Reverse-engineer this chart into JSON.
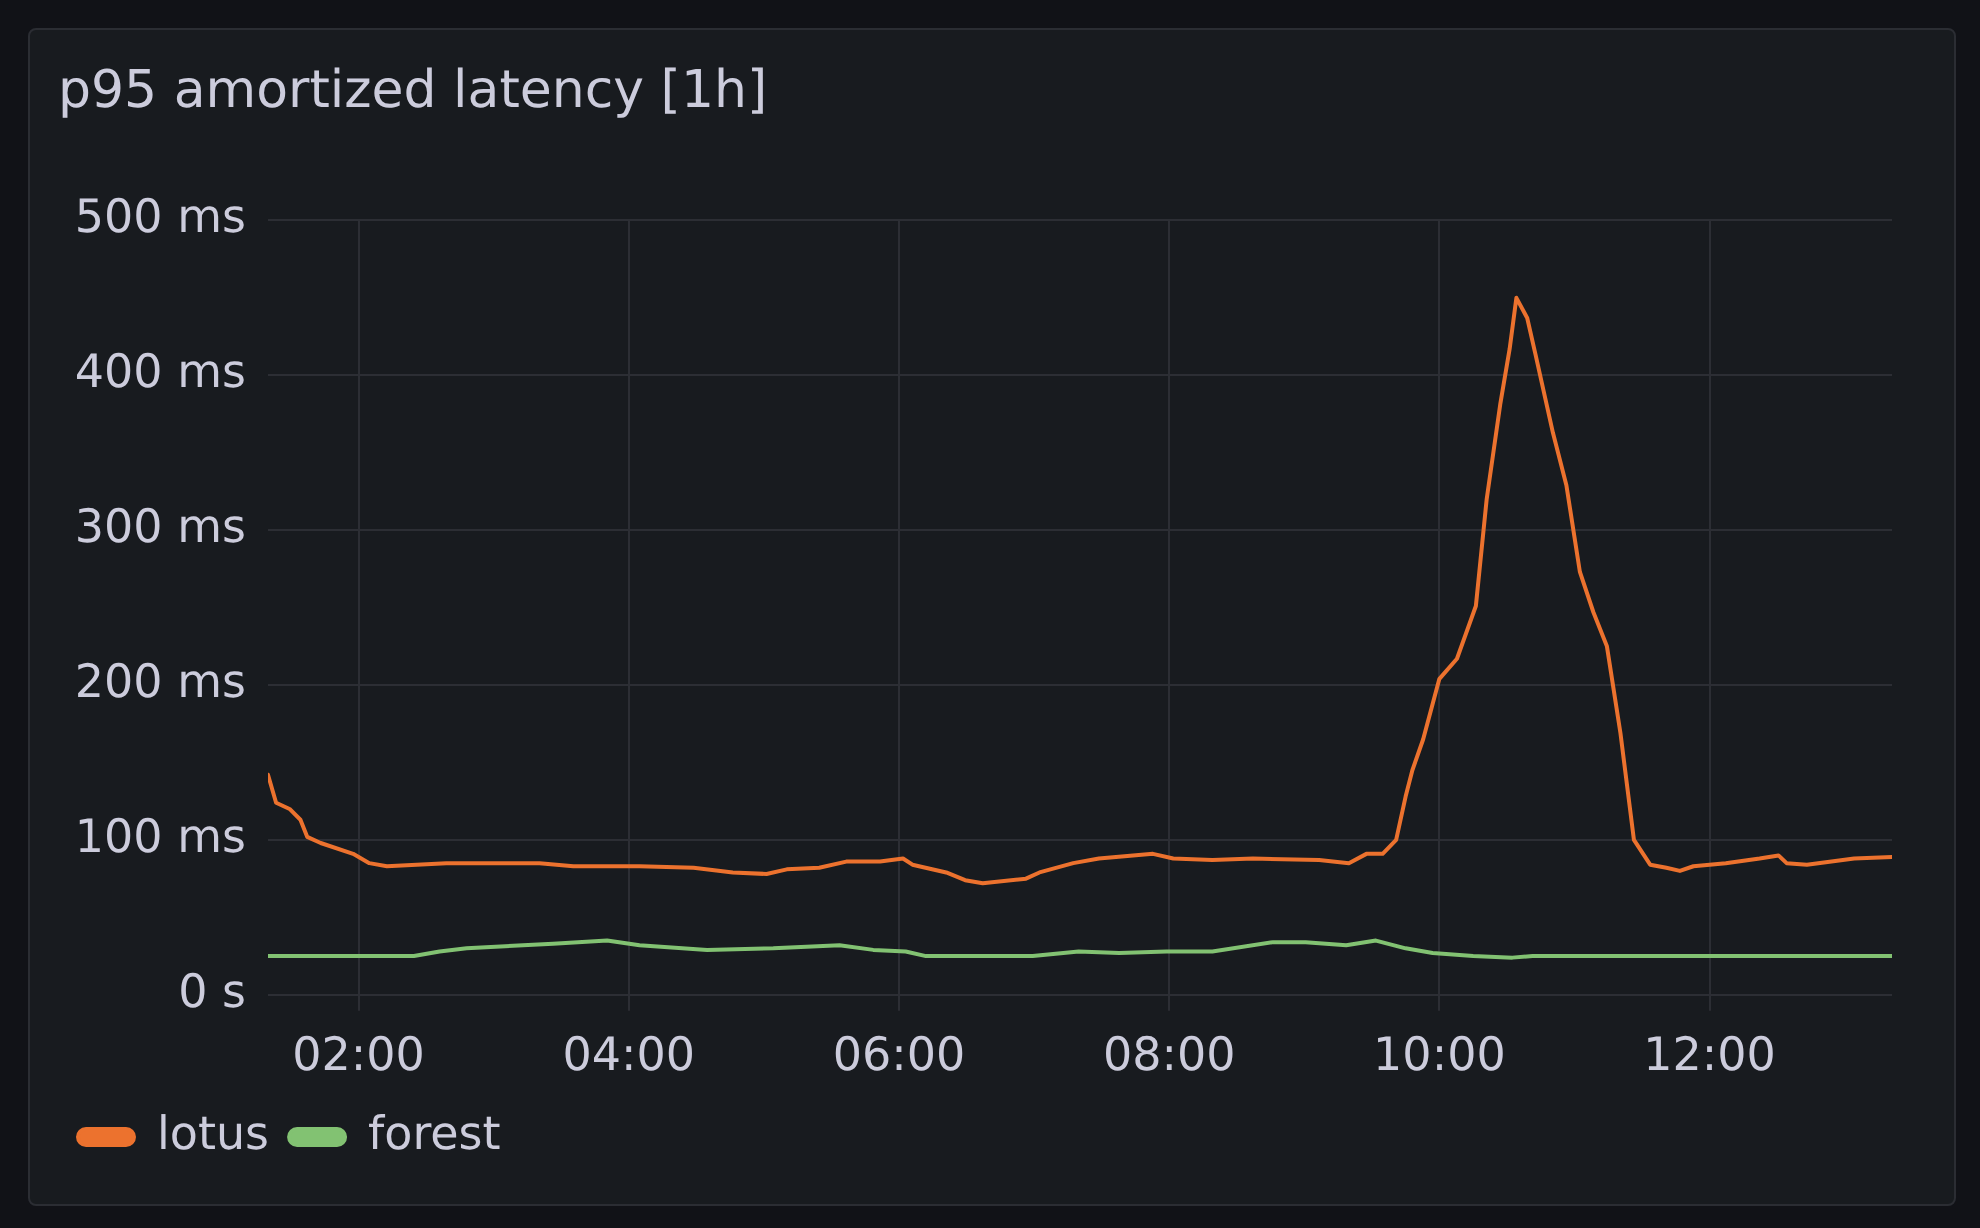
{
  "chart_data": {
    "type": "line",
    "title": "p95 amortized latency [1h]",
    "series": [
      {
        "name": "lotus",
        "color": "#ec722e",
        "x": [
          1.33,
          1.39,
          1.49,
          1.57,
          1.62,
          1.72,
          1.96,
          2.08,
          2.21,
          2.65,
          3.34,
          3.59,
          4.08,
          4.48,
          4.77,
          5.02,
          5.17,
          5.41,
          5.61,
          5.86,
          6.03,
          6.1,
          6.35,
          6.49,
          6.62,
          6.94,
          7.04,
          7.29,
          7.48,
          7.88,
          8.03,
          8.32,
          8.62,
          9.11,
          9.33,
          9.46,
          9.58,
          9.68,
          9.75,
          9.8,
          9.88,
          10.0,
          10.13,
          10.27,
          10.35,
          10.45,
          10.52,
          10.57,
          10.65,
          10.71,
          10.84,
          10.94,
          11.04,
          11.14,
          11.24,
          11.34,
          11.44,
          11.56,
          11.68,
          11.78,
          11.88,
          12.12,
          12.37,
          12.51,
          12.57,
          12.72,
          13.07,
          13.35
        ],
        "values": [
          142,
          124,
          120,
          113,
          102,
          98,
          91,
          85,
          83,
          85,
          85,
          83,
          83,
          82,
          79,
          78,
          81,
          82,
          86,
          86,
          88,
          84,
          79,
          74,
          72,
          75,
          79,
          85,
          88,
          91,
          88,
          87,
          88,
          87,
          85,
          91,
          91,
          100,
          128,
          145,
          165,
          204,
          217,
          251,
          320,
          381,
          417,
          450,
          437,
          414,
          363,
          329,
          273,
          247,
          225,
          169,
          100,
          84,
          82,
          80,
          83,
          85,
          88,
          90,
          85,
          84,
          88,
          89
        ]
      },
      {
        "name": "forest",
        "color": "#82c272",
        "x": [
          1.33,
          2.41,
          2.6,
          2.8,
          3.44,
          3.84,
          4.08,
          4.58,
          5.07,
          5.56,
          5.81,
          6.05,
          6.2,
          6.99,
          7.33,
          7.63,
          7.98,
          8.32,
          8.77,
          9.01,
          9.31,
          9.53,
          9.75,
          9.95,
          10.25,
          10.54,
          10.69,
          13.35
        ],
        "values": [
          25,
          25,
          28,
          30,
          33,
          35,
          32,
          29,
          30,
          32,
          29,
          28,
          25,
          25,
          28,
          27,
          28,
          28,
          34,
          34,
          32,
          35,
          30,
          27,
          25,
          24,
          25,
          25
        ]
      }
    ],
    "xlim": [
      1.33,
      13.35
    ],
    "xticks": [
      {
        "value": 2,
        "label": "02:00"
      },
      {
        "value": 4,
        "label": "04:00"
      },
      {
        "value": 6,
        "label": "06:00"
      },
      {
        "value": 8,
        "label": "08:00"
      },
      {
        "value": 10,
        "label": "10:00"
      },
      {
        "value": 12,
        "label": "12:00"
      }
    ],
    "ylim": [
      0,
      500
    ],
    "yticks": [
      {
        "value": 0,
        "label": "0 s"
      },
      {
        "value": 100,
        "label": "100 ms"
      },
      {
        "value": 200,
        "label": "200 ms"
      },
      {
        "value": 300,
        "label": "300 ms"
      },
      {
        "value": 400,
        "label": "400 ms"
      },
      {
        "value": 500,
        "label": "500 ms"
      }
    ],
    "grid": true,
    "legend": "bottom left"
  }
}
